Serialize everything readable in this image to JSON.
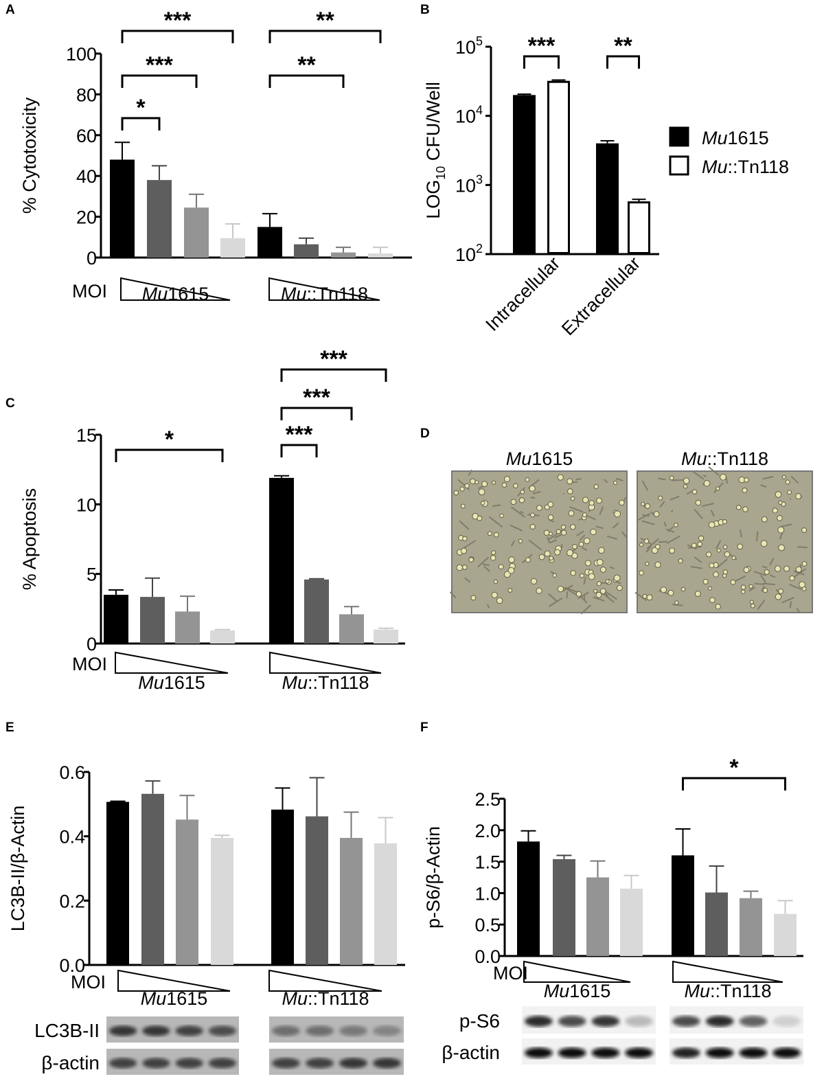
{
  "colors": {
    "bar1": "#000000",
    "bar2": "#5e5e5e",
    "bar3": "#949494",
    "bar4": "#d9d9d9",
    "tn118_fill": "#ffffff"
  },
  "chart_data": [
    {
      "panel": "A",
      "type": "bar",
      "ylabel": "% Cytotoxicity",
      "ylim": [
        0,
        100
      ],
      "yticks": [
        "0",
        "20",
        "40",
        "60",
        "80",
        "100"
      ],
      "moi_label": "MOI",
      "moi_direction": "decreasing",
      "groups": [
        {
          "label_italic": "Mu",
          "label_rest": "1615",
          "values": [
            48,
            38,
            24.5,
            9.5
          ],
          "errors": [
            8.5,
            7,
            6.5,
            7
          ]
        },
        {
          "label_italic": "Mu",
          "label_rest": "::Tn118",
          "values": [
            15,
            6.5,
            2.5,
            2
          ],
          "errors": [
            6.5,
            3,
            2.5,
            3
          ]
        }
      ],
      "significance": [
        {
          "group": 0,
          "from": 0,
          "to": 3,
          "label": "***"
        },
        {
          "group": 0,
          "from": 0,
          "to": 2,
          "label": "***"
        },
        {
          "group": 0,
          "from": 0,
          "to": 1,
          "label": "*"
        },
        {
          "group": 1,
          "from": 0,
          "to": 3,
          "label": "**"
        },
        {
          "group": 1,
          "from": 0,
          "to": 2,
          "label": "**"
        }
      ]
    },
    {
      "panel": "B",
      "type": "bar",
      "scale": "log",
      "ylabel_main": "LOG",
      "ylabel_sub": "10",
      "ylabel_rest": " CFU/Well",
      "ylim": [
        100,
        100000
      ],
      "yticks": [
        {
          "base": "10",
          "exp": "2"
        },
        {
          "base": "10",
          "exp": "3"
        },
        {
          "base": "10",
          "exp": "4"
        },
        {
          "base": "10",
          "exp": "5"
        }
      ],
      "categories": [
        "Intracellular",
        "Extracellular"
      ],
      "series": [
        {
          "name_italic": "Mu",
          "name_rest": "1615",
          "values": [
            20000,
            4000
          ],
          "errors": [
            600,
            350
          ]
        },
        {
          "name_italic": "Mu",
          "name_rest": "::Tn118",
          "values": [
            31000,
            560
          ],
          "errors": [
            2000,
            60
          ]
        }
      ],
      "significance": [
        {
          "category": 0,
          "label": "***"
        },
        {
          "category": 1,
          "label": "**"
        }
      ],
      "legend": "right"
    },
    {
      "panel": "C",
      "type": "bar",
      "ylabel": "% Apoptosis",
      "ylim": [
        0,
        15
      ],
      "yticks": [
        "0",
        "5",
        "10",
        "15"
      ],
      "moi_label": "MOI",
      "moi_direction": "decreasing",
      "groups": [
        {
          "label_italic": "Mu",
          "label_rest": "1615",
          "values": [
            3.5,
            3.35,
            2.3,
            0.95
          ],
          "errors": [
            0.35,
            1.35,
            1.1,
            0.05
          ]
        },
        {
          "label_italic": "Mu",
          "label_rest": "::Tn118",
          "values": [
            11.9,
            4.6,
            2.1,
            1.0
          ],
          "errors": [
            0.15,
            0.05,
            0.55,
            0.1
          ]
        }
      ],
      "significance": [
        {
          "group": 0,
          "from": 0,
          "to": 3,
          "label": "*"
        },
        {
          "group": 1,
          "from": 0,
          "to": 3,
          "label": "***"
        },
        {
          "group": 1,
          "from": 0,
          "to": 2,
          "label": "***"
        },
        {
          "group": 1,
          "from": 0,
          "to": 1,
          "label": "***"
        }
      ]
    },
    {
      "panel": "E",
      "type": "bar",
      "ylabel": "LC3B-II/β-Actin",
      "ylim": [
        0,
        0.6
      ],
      "yticks": [
        "0.0",
        "0.2",
        "0.4",
        "0.6"
      ],
      "moi_label": "MOI",
      "moi_direction": "decreasing",
      "groups": [
        {
          "label_italic": "Mu",
          "label_rest": "1615",
          "values": [
            0.507,
            0.532,
            0.452,
            0.395
          ],
          "errors": [
            0.002,
            0.04,
            0.075,
            0.008
          ]
        },
        {
          "label_italic": "Mu",
          "label_rest": "::Tn118",
          "values": [
            0.483,
            0.462,
            0.395,
            0.378
          ],
          "errors": [
            0.067,
            0.12,
            0.08,
            0.08
          ]
        }
      ],
      "significance": [],
      "blots": [
        {
          "label": "LC3B-II"
        },
        {
          "label": "β-actin"
        }
      ]
    },
    {
      "panel": "F",
      "type": "bar",
      "ylabel": "p-S6/β-Actin",
      "ylim": [
        0,
        2.5
      ],
      "yticks": [
        "0.0",
        "0.5",
        "1.0",
        "1.5",
        "2.0",
        "2.5"
      ],
      "moi_label": "MOI",
      "moi_direction": "decreasing",
      "groups": [
        {
          "label_italic": "Mu",
          "label_rest": "1615",
          "values": [
            1.82,
            1.54,
            1.25,
            1.07
          ],
          "errors": [
            0.17,
            0.06,
            0.26,
            0.21
          ]
        },
        {
          "label_italic": "Mu",
          "label_rest": "::Tn118",
          "values": [
            1.6,
            1.01,
            0.92,
            0.67
          ],
          "errors": [
            0.42,
            0.42,
            0.11,
            0.21
          ]
        }
      ],
      "significance": [
        {
          "group": 1,
          "from": 0,
          "to": 3,
          "label": "*"
        }
      ],
      "blots": [
        {
          "label": "p-S6"
        },
        {
          "label": "β-actin"
        }
      ]
    }
  ],
  "panel_d": {
    "panel": "D",
    "images": [
      {
        "title_italic": "Mu",
        "title_rest": "1615"
      },
      {
        "title_italic": "Mu",
        "title_rest": "::Tn118"
      }
    ]
  }
}
